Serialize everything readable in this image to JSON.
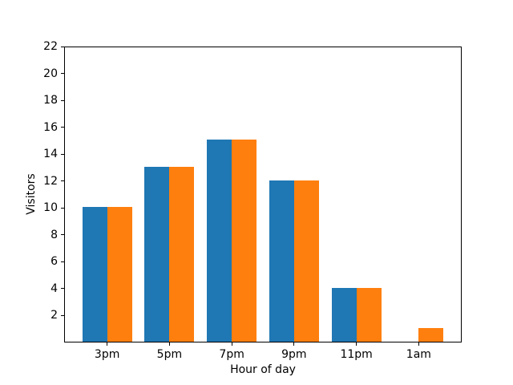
{
  "chart_data": {
    "type": "bar",
    "title": "",
    "xlabel": "Hour of day",
    "ylabel": "Visitors",
    "categories": [
      "3pm",
      "5pm",
      "7pm",
      "9pm",
      "11pm",
      "1am"
    ],
    "series": [
      {
        "name": "series-blue",
        "color": "#1f77b4",
        "values": [
          10,
          13,
          15,
          12,
          4,
          0
        ]
      },
      {
        "name": "series-orange",
        "color": "#ff7f0e",
        "values": [
          10,
          13,
          15,
          12,
          4,
          1
        ]
      }
    ],
    "ylim": [
      0,
      22
    ],
    "yticks": [
      2,
      4,
      6,
      8,
      10,
      12,
      14,
      16,
      18,
      20,
      22
    ],
    "xlim": [
      -0.69,
      5.69
    ],
    "bar_width": 0.4,
    "group_offsets": [
      -0.2,
      0.2
    ],
    "grid": false,
    "legend": null,
    "colors": {
      "axis": "#000000",
      "background": "#ffffff"
    }
  }
}
